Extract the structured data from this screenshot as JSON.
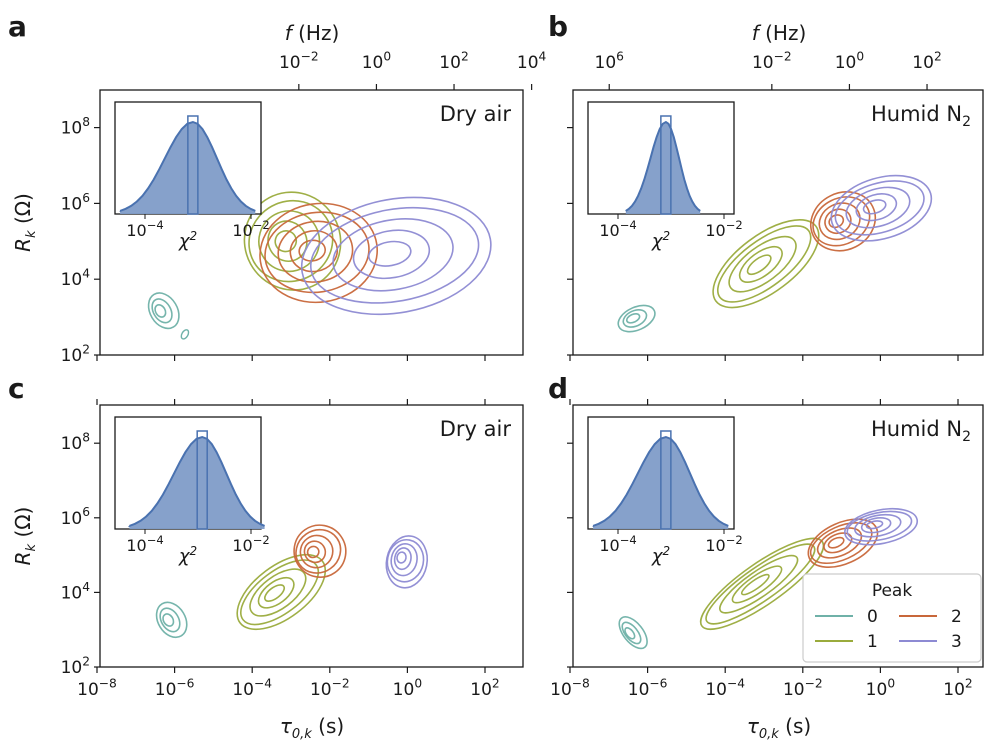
{
  "panel_letters": [
    "a",
    "b",
    "c",
    "d"
  ],
  "top_axis_label": "f (Hz)",
  "top_ticks": [
    "10^6",
    "10^4",
    "10^2",
    "10^0",
    "10^-2"
  ],
  "x_axis_label": "τ0,k (s)",
  "y_axis_label": "Rk (Ω)",
  "x_ticks": [
    "10^-8",
    "10^-6",
    "10^-4",
    "10^-2",
    "10^0",
    "10^2"
  ],
  "y_ticks": [
    "10^2",
    "10^4",
    "10^6",
    "10^8"
  ],
  "inset_x_label": "χ2",
  "inset_ticks": [
    "10^-4",
    "10^-2"
  ],
  "legend": {
    "title": "Peak",
    "entries": [
      {
        "label": "0",
        "color": "#6fb1a8"
      },
      {
        "label": "1",
        "color": "#9aab3c"
      },
      {
        "label": "2",
        "color": "#c8673a"
      },
      {
        "label": "3",
        "color": "#8d8ad3"
      }
    ]
  },
  "colors": {
    "inset_fill": "#7f9cc8",
    "inset_line": "#4a72b0"
  },
  "chart_data": [
    {
      "type": "contour",
      "panel": "a",
      "condition": "Dry air",
      "xscale": "log",
      "yscale": "log",
      "xlim": [
        1e-08,
        1000.0
      ],
      "ylim": [
        100.0,
        1000000000.0
      ],
      "top_axis": "f (Hz)",
      "series": [
        {
          "name": "0",
          "center": [
            5e-07,
            1600.0
          ],
          "contours": 3
        },
        {
          "name": "1",
          "center": [
            0.001,
            120000.0
          ],
          "contours": 5
        },
        {
          "name": "2",
          "center": [
            0.005,
            60000.0
          ],
          "contours": 5
        },
        {
          "name": "3",
          "center": [
            0.5,
            50000.0
          ],
          "contours": 5
        }
      ],
      "inset": {
        "type": "histogram",
        "xscale": "log",
        "xlabel": "χ2",
        "peak_x": 0.0008
      }
    },
    {
      "type": "contour",
      "panel": "b",
      "condition": "Humid N2",
      "xscale": "log",
      "yscale": "log",
      "xlim": [
        1e-08,
        1000.0
      ],
      "ylim": [
        100.0,
        1000000000.0
      ],
      "top_axis": "f (Hz)",
      "series": [
        {
          "name": "0",
          "center": [
            5e-07,
            1000.0
          ],
          "contours": 3
        },
        {
          "name": "1",
          "center": [
            0.001,
            30000.0
          ],
          "contours": 5
        },
        {
          "name": "2",
          "center": [
            0.1,
            400000.0
          ],
          "contours": 5
        },
        {
          "name": "3",
          "center": [
            1,
            900000.0
          ],
          "contours": 5
        }
      ],
      "inset": {
        "type": "histogram",
        "xscale": "log",
        "xlabel": "χ2",
        "peak_x": 0.0008
      }
    },
    {
      "type": "contour",
      "panel": "c",
      "condition": "Dry air",
      "xscale": "log",
      "yscale": "log",
      "xlim": [
        1e-08,
        1000.0
      ],
      "ylim": [
        100.0,
        1000000000.0
      ],
      "series": [
        {
          "name": "0",
          "center": [
            8e-07,
            2000.0
          ],
          "contours": 3
        },
        {
          "name": "1",
          "center": [
            0.0005,
            12000.0
          ],
          "contours": 5
        },
        {
          "name": "2",
          "center": [
            0.005,
            150000.0
          ],
          "contours": 5
        },
        {
          "name": "3",
          "center": [
            1,
            80000.0
          ],
          "contours": 5
        }
      ],
      "inset": {
        "type": "histogram",
        "xscale": "log",
        "xlabel": "χ2",
        "peak_x": 0.0012
      }
    },
    {
      "type": "contour",
      "panel": "d",
      "condition": "Humid N2",
      "xscale": "log",
      "yscale": "log",
      "xlim": [
        1e-08,
        1000.0
      ],
      "ylim": [
        100.0,
        1000000000.0
      ],
      "series": [
        {
          "name": "0",
          "center": [
            4e-07,
            900.0
          ],
          "contours": 3
        },
        {
          "name": "1",
          "center": [
            0.0008,
            20000.0
          ],
          "contours": 5
        },
        {
          "name": "2",
          "center": [
            0.1,
            250000.0
          ],
          "contours": 5
        },
        {
          "name": "3",
          "center": [
            1,
            700000.0
          ],
          "contours": 5
        }
      ],
      "inset": {
        "type": "histogram",
        "xscale": "log",
        "xlabel": "χ2",
        "peak_x": 0.0008
      }
    }
  ]
}
